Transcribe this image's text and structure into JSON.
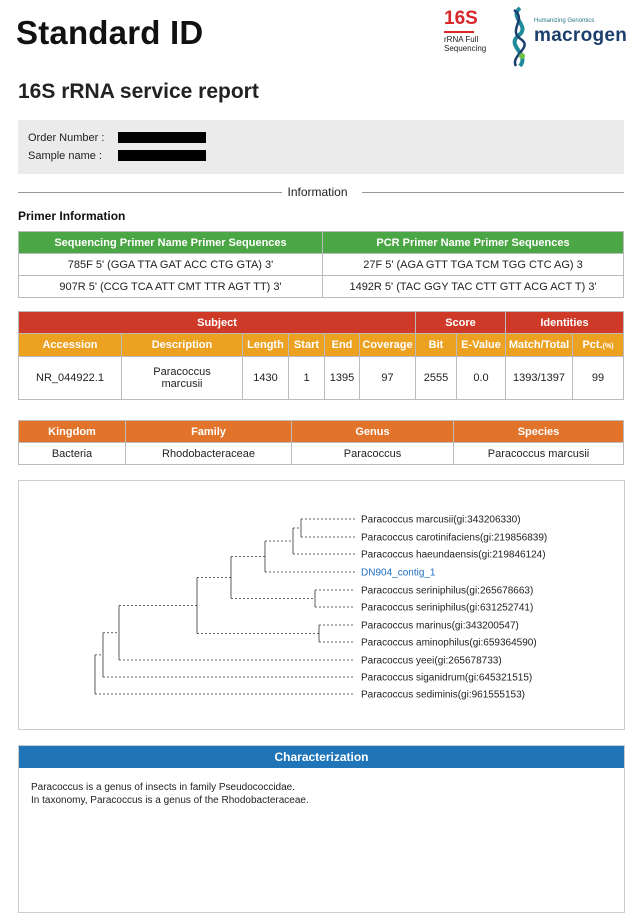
{
  "header": {
    "title": "Standard ID",
    "subtitle": "16S rRNA service report"
  },
  "logo_16s": {
    "big": "16S",
    "line1": "rRNA Full",
    "line2": "Sequencing"
  },
  "logo_macrogen": {
    "tagline": "Humanizing Genomics",
    "brand": "macrogen"
  },
  "order": {
    "order_number_label": "Order Number :",
    "sample_name_label": "Sample name :"
  },
  "info_label": "Information",
  "primer_section_label": "Primer Information",
  "primer_table": {
    "headers": [
      "Sequencing Primer Name Primer Sequences",
      "PCR Primer Name Primer Sequences"
    ],
    "rows": [
      [
        "785F 5' (GGA TTA GAT ACC CTG GTA) 3'",
        "27F 5' (AGA GTT TGA TCM TGG CTC AG) 3"
      ],
      [
        "907R 5' (CCG TCA ATT CMT TTR AGT TT) 3'",
        "1492R 5' (TAC GGY TAC CTT GTT ACG ACT T) 3'"
      ]
    ]
  },
  "subject_table": {
    "group_headers": [
      "Subject",
      "Score",
      "Identities"
    ],
    "headers": [
      "Accession",
      "Description",
      "Length",
      "Start",
      "End",
      "Coverage",
      "Bit",
      "E-Value",
      "Match/Total",
      "Pct.",
      "(%)"
    ],
    "row": {
      "accession": "NR_044922.1",
      "description_1": "Paracoccus",
      "description_2": "marcusii",
      "length": "1430",
      "start": "1",
      "end": "1395",
      "coverage": "97",
      "bit": "2555",
      "evalue": "0.0",
      "match_total": "1393/1397",
      "pct": "99"
    }
  },
  "taxonomy_table": {
    "headers": [
      "Kingdom",
      "Family",
      "Genus",
      "Species"
    ],
    "row": [
      "Bacteria",
      "Rhodobacteraceae",
      "Paracoccus",
      "Paracoccus marcusii"
    ]
  },
  "tree": {
    "leaves": [
      "Paracoccus marcusii(gi:343206330)",
      "Paracoccus carotinifaciens(gi:219856839)",
      "Paracoccus haeundaensis(gi:219846124)",
      "DN904_contig_1",
      "Paracoccus seriniphilus(gi:265678663)",
      "Paracoccus seriniphilus(gi:631252741)",
      "Paracoccus marinus(gi:343200547)",
      "Paracoccus aminophilus(gi:659364590)",
      "Paracoccus yeei(gi:265678733)",
      "Paracoccus siganidrum(gi:645321515)",
      "Paracoccus sediminis(gi:961555153)"
    ],
    "query_color": "#1f6fc0"
  },
  "characterization": {
    "heading": "Characterization",
    "line1": "Paracoccus is a genus of insects in family Pseudococcidae.",
    "line2": "In taxonomy, Paracoccus is a genus of the Rhodobacteraceae."
  }
}
